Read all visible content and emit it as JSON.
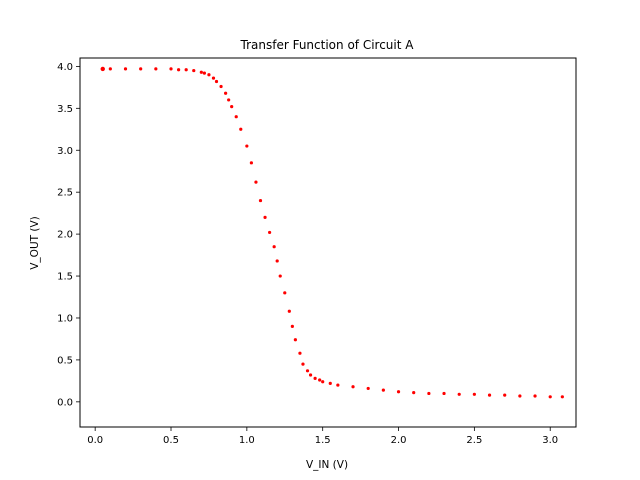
{
  "chart_data": {
    "type": "scatter",
    "title": "Transfer Function of Circuit A",
    "xlabel": "V_IN (V)",
    "ylabel": "V_OUT (V)",
    "xlim": [
      -0.1,
      3.17
    ],
    "ylim": [
      -0.3,
      4.1
    ],
    "grid": false,
    "marker_color": "#ff0000",
    "xticks": [
      0.0,
      0.5,
      1.0,
      1.5,
      2.0,
      2.5,
      3.0
    ],
    "xtick_labels": [
      "0.0",
      "0.5",
      "1.0",
      "1.5",
      "2.0",
      "2.5",
      "3.0"
    ],
    "yticks": [
      0.0,
      0.5,
      1.0,
      1.5,
      2.0,
      2.5,
      3.0,
      3.5,
      4.0
    ],
    "ytick_labels": [
      "0.0",
      "0.5",
      "1.0",
      "1.5",
      "2.0",
      "2.5",
      "3.0",
      "3.5",
      "4.0"
    ],
    "series": [
      {
        "x": [
          0.05,
          0.1,
          0.2,
          0.3,
          0.4,
          0.5,
          0.55,
          0.6,
          0.65,
          0.7,
          0.72,
          0.75,
          0.78,
          0.8,
          0.83,
          0.86,
          0.88,
          0.9,
          0.93,
          0.96,
          1.0,
          1.03,
          1.06,
          1.09,
          1.12,
          1.15,
          1.18,
          1.2,
          1.22,
          1.25,
          1.28,
          1.3,
          1.32,
          1.35,
          1.37,
          1.4,
          1.42,
          1.45,
          1.48,
          1.5,
          1.55,
          1.6,
          1.7,
          1.8,
          1.9,
          2.0,
          2.1,
          2.2,
          2.3,
          2.4,
          2.5,
          2.6,
          2.7,
          2.8,
          2.9,
          3.0,
          3.08
        ],
        "y": [
          3.97,
          3.97,
          3.97,
          3.97,
          3.97,
          3.97,
          3.96,
          3.96,
          3.95,
          3.93,
          3.92,
          3.9,
          3.86,
          3.82,
          3.76,
          3.68,
          3.6,
          3.52,
          3.4,
          3.25,
          3.05,
          2.85,
          2.62,
          2.4,
          2.2,
          2.02,
          1.85,
          1.68,
          1.5,
          1.3,
          1.08,
          0.9,
          0.74,
          0.58,
          0.45,
          0.37,
          0.32,
          0.28,
          0.26,
          0.24,
          0.22,
          0.2,
          0.18,
          0.16,
          0.14,
          0.12,
          0.11,
          0.1,
          0.1,
          0.09,
          0.09,
          0.08,
          0.08,
          0.07,
          0.07,
          0.06,
          0.06
        ]
      }
    ]
  }
}
